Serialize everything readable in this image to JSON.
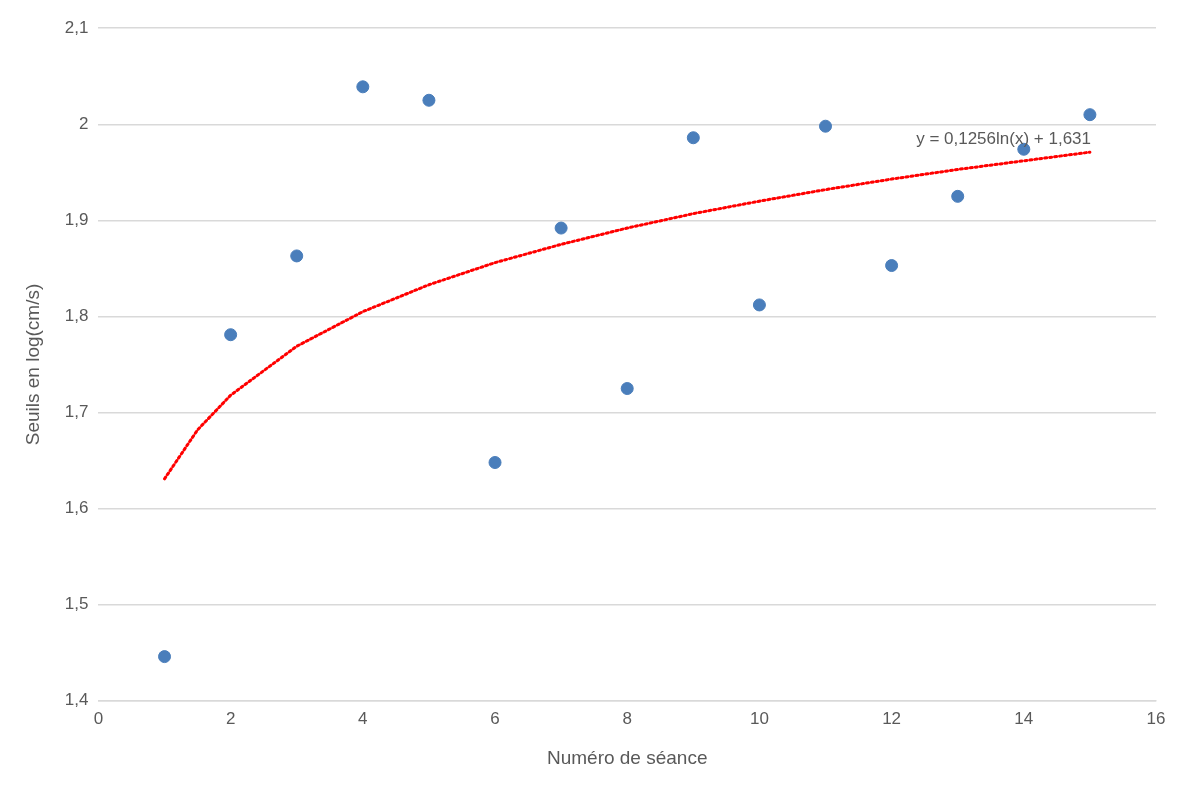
{
  "chart_data": {
    "type": "scatter",
    "xlabel": "Numéro de séance",
    "ylabel": "Seuils en log(cm/s)",
    "xlim": [
      0,
      16
    ],
    "xticks": [
      0,
      2,
      4,
      6,
      8,
      10,
      12,
      14,
      16
    ],
    "ylim": [
      1.4,
      2.1
    ],
    "yticks": [
      {
        "value": 1.4,
        "label": "1,4"
      },
      {
        "value": 1.5,
        "label": "1,5"
      },
      {
        "value": 1.6,
        "label": "1,6"
      },
      {
        "value": 1.7,
        "label": "1,7"
      },
      {
        "value": 1.8,
        "label": "1,8"
      },
      {
        "value": 1.9,
        "label": "1,9"
      },
      {
        "value": 2,
        "label": "2"
      },
      {
        "value": 2.1,
        "label": "2,1"
      }
    ],
    "grid": "y",
    "legend": false,
    "series": [
      {
        "color": "#4a7ebb",
        "marker": "circle",
        "x": [
          1,
          2,
          3,
          4,
          5,
          6,
          7,
          8,
          9,
          10,
          11,
          12,
          13,
          14,
          15
        ],
        "values": [
          1.446,
          1.781,
          1.863,
          2.039,
          2.025,
          1.648,
          1.892,
          1.725,
          1.986,
          1.812,
          1.998,
          1.853,
          1.925,
          1.974,
          2.01
        ]
      },
      {
        "type": "line",
        "color": "#ff0000",
        "marker": "none",
        "line_style": "dotted",
        "x": [
          1,
          1.5,
          2,
          3,
          4,
          5,
          6,
          7,
          8,
          9,
          10,
          11,
          12,
          13,
          14,
          15
        ],
        "values": [
          1.631,
          1.682,
          1.718,
          1.769,
          1.805,
          1.833,
          1.856,
          1.875,
          1.892,
          1.907,
          1.92,
          1.932,
          1.943,
          1.953,
          1.962,
          1.971
        ]
      }
    ],
    "annotations": [
      "y = 0,1256ln(x) + 1,631"
    ]
  }
}
